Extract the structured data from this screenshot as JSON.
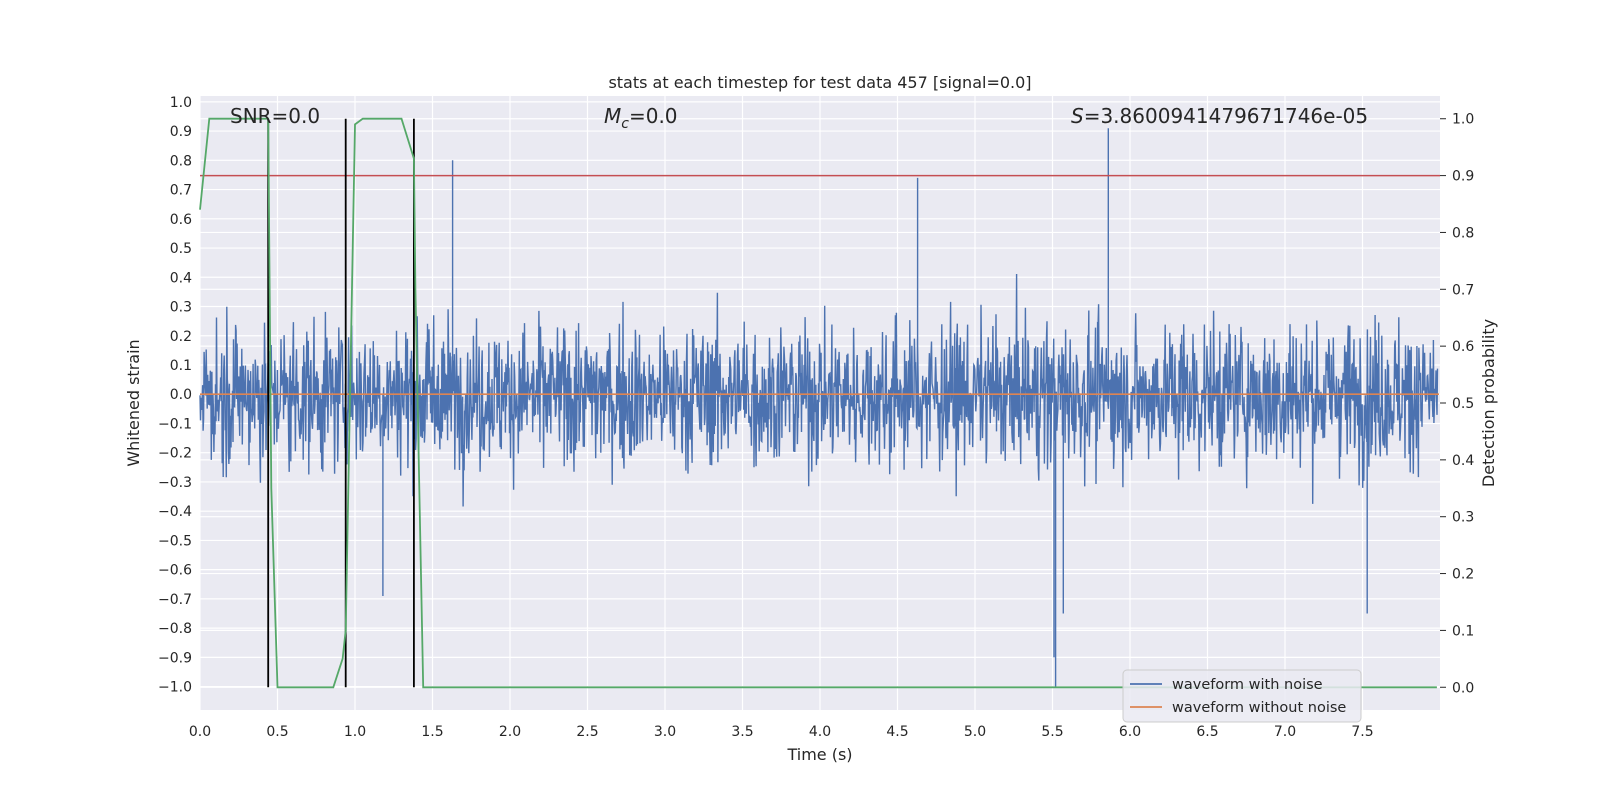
{
  "chart_data": {
    "type": "line",
    "title": "stats at each timestep for test data 457 [signal=0.0]",
    "xlabel": "Time (s)",
    "ylabel": "Whitened strain",
    "y2label": "Detection probability",
    "xlim": [
      0.0,
      8.0
    ],
    "ylim": [
      -1.08,
      1.02
    ],
    "y2lim": [
      -0.04,
      1.04
    ],
    "x_ticks": [
      "0.0",
      "0.5",
      "1.0",
      "1.5",
      "2.0",
      "2.5",
      "3.0",
      "3.5",
      "4.0",
      "4.5",
      "5.0",
      "5.5",
      "6.0",
      "6.5",
      "7.0",
      "7.5"
    ],
    "y_ticks": [
      "1.0",
      "0.9",
      "0.8",
      "0.7",
      "0.6",
      "0.5",
      "0.4",
      "0.3",
      "0.2",
      "0.1",
      "0.0",
      "−0.1",
      "−0.2",
      "−0.3",
      "−0.4",
      "−0.5",
      "−0.6",
      "−0.7",
      "−0.8",
      "−0.9",
      "−1.0"
    ],
    "y2_ticks": [
      "1.0",
      "0.9",
      "0.8",
      "0.7",
      "0.6",
      "0.5",
      "0.4",
      "0.3",
      "0.2",
      "0.1",
      "0.0"
    ],
    "annotations": {
      "snr": "SNR=0.0",
      "mc_symbol": "M",
      "mc_sub": "c",
      "mc_value": "=0.0",
      "s_symbol": "S",
      "s_value": "=3.8600941479671746e-05"
    },
    "legend": {
      "placement": "lower-right",
      "entries": [
        "waveform with noise",
        "waveform without noise"
      ]
    },
    "threshold": 0.9,
    "detection_lines_x": [
      0.44,
      0.94,
      1.38
    ],
    "series": [
      {
        "name": "waveform with noise",
        "color": "#4c72b0",
        "axis": "left",
        "kind": "noise",
        "spikes": [
          [
            1.63,
            0.8
          ],
          [
            4.63,
            0.74
          ],
          [
            5.86,
            0.91
          ],
          [
            5.52,
            -1.0
          ],
          [
            5.51,
            -0.9
          ],
          [
            5.57,
            -0.75
          ],
          [
            1.18,
            -0.69
          ],
          [
            7.53,
            -0.75
          ]
        ]
      },
      {
        "name": "waveform without noise",
        "color": "#dd8452",
        "axis": "left",
        "x": [
          0.0,
          8.0
        ],
        "values": [
          0.0,
          0.0
        ]
      },
      {
        "name": "detection probability",
        "color": "#55a868",
        "axis": "right",
        "x": [
          0.0,
          0.06,
          0.1,
          0.2,
          0.3,
          0.4,
          0.44,
          0.46,
          0.5,
          0.55,
          0.6,
          0.7,
          0.8,
          0.86,
          0.92,
          0.94,
          0.97,
          1.0,
          1.05,
          1.1,
          1.2,
          1.3,
          1.38,
          1.39,
          1.44,
          1.5,
          2.0,
          3.0,
          4.0,
          5.0,
          6.0,
          7.0,
          7.98
        ],
        "values": [
          0.84,
          1.0,
          1.0,
          1.0,
          1.0,
          1.0,
          1.0,
          0.35,
          0.0,
          0.0,
          0.0,
          0.0,
          0.0,
          0.0,
          0.05,
          0.1,
          0.55,
          0.99,
          1.0,
          1.0,
          1.0,
          1.0,
          0.93,
          0.7,
          0.0,
          0.0,
          0.0,
          0.0,
          0.0,
          0.0,
          0.0,
          0.0,
          0.0
        ]
      }
    ]
  }
}
